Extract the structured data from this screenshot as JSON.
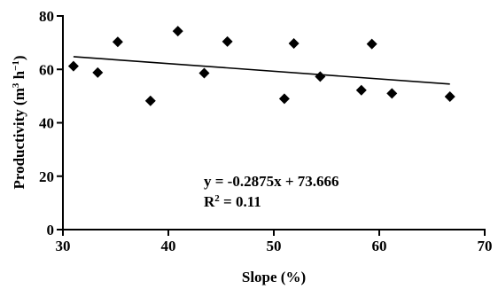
{
  "chart_data": {
    "type": "scatter",
    "xlabel": "Slope (%)",
    "ylabel_parts": {
      "base": "Productivity (m",
      "sup1": "3",
      "mid": " h",
      "sup2": "−1",
      "end": ")"
    },
    "xlim": [
      30,
      70
    ],
    "ylim": [
      0,
      80
    ],
    "xticks": [
      30,
      40,
      50,
      60,
      70
    ],
    "yticks": [
      0,
      20,
      40,
      60,
      80
    ],
    "grid": false,
    "marker": "diamond",
    "color": "#000000",
    "points": [
      {
        "x": 31.0,
        "y": 61.2
      },
      {
        "x": 33.3,
        "y": 58.8
      },
      {
        "x": 35.2,
        "y": 70.3
      },
      {
        "x": 38.3,
        "y": 48.2
      },
      {
        "x": 40.9,
        "y": 74.3
      },
      {
        "x": 43.4,
        "y": 58.6
      },
      {
        "x": 45.6,
        "y": 70.4
      },
      {
        "x": 51.0,
        "y": 49.0
      },
      {
        "x": 51.9,
        "y": 69.7
      },
      {
        "x": 54.4,
        "y": 57.3
      },
      {
        "x": 58.3,
        "y": 52.2
      },
      {
        "x": 59.3,
        "y": 69.5
      },
      {
        "x": 61.2,
        "y": 51.0
      },
      {
        "x": 66.7,
        "y": 49.8
      }
    ],
    "trendline": {
      "slope": -0.2875,
      "intercept": 73.666,
      "x_start": 31.0,
      "x_end": 66.7
    },
    "equation": {
      "line1": "y = -0.2875x + 73.666",
      "r2_prefix": "R",
      "r2_sup": "2",
      "r2_suffix": " = 0.11"
    }
  }
}
